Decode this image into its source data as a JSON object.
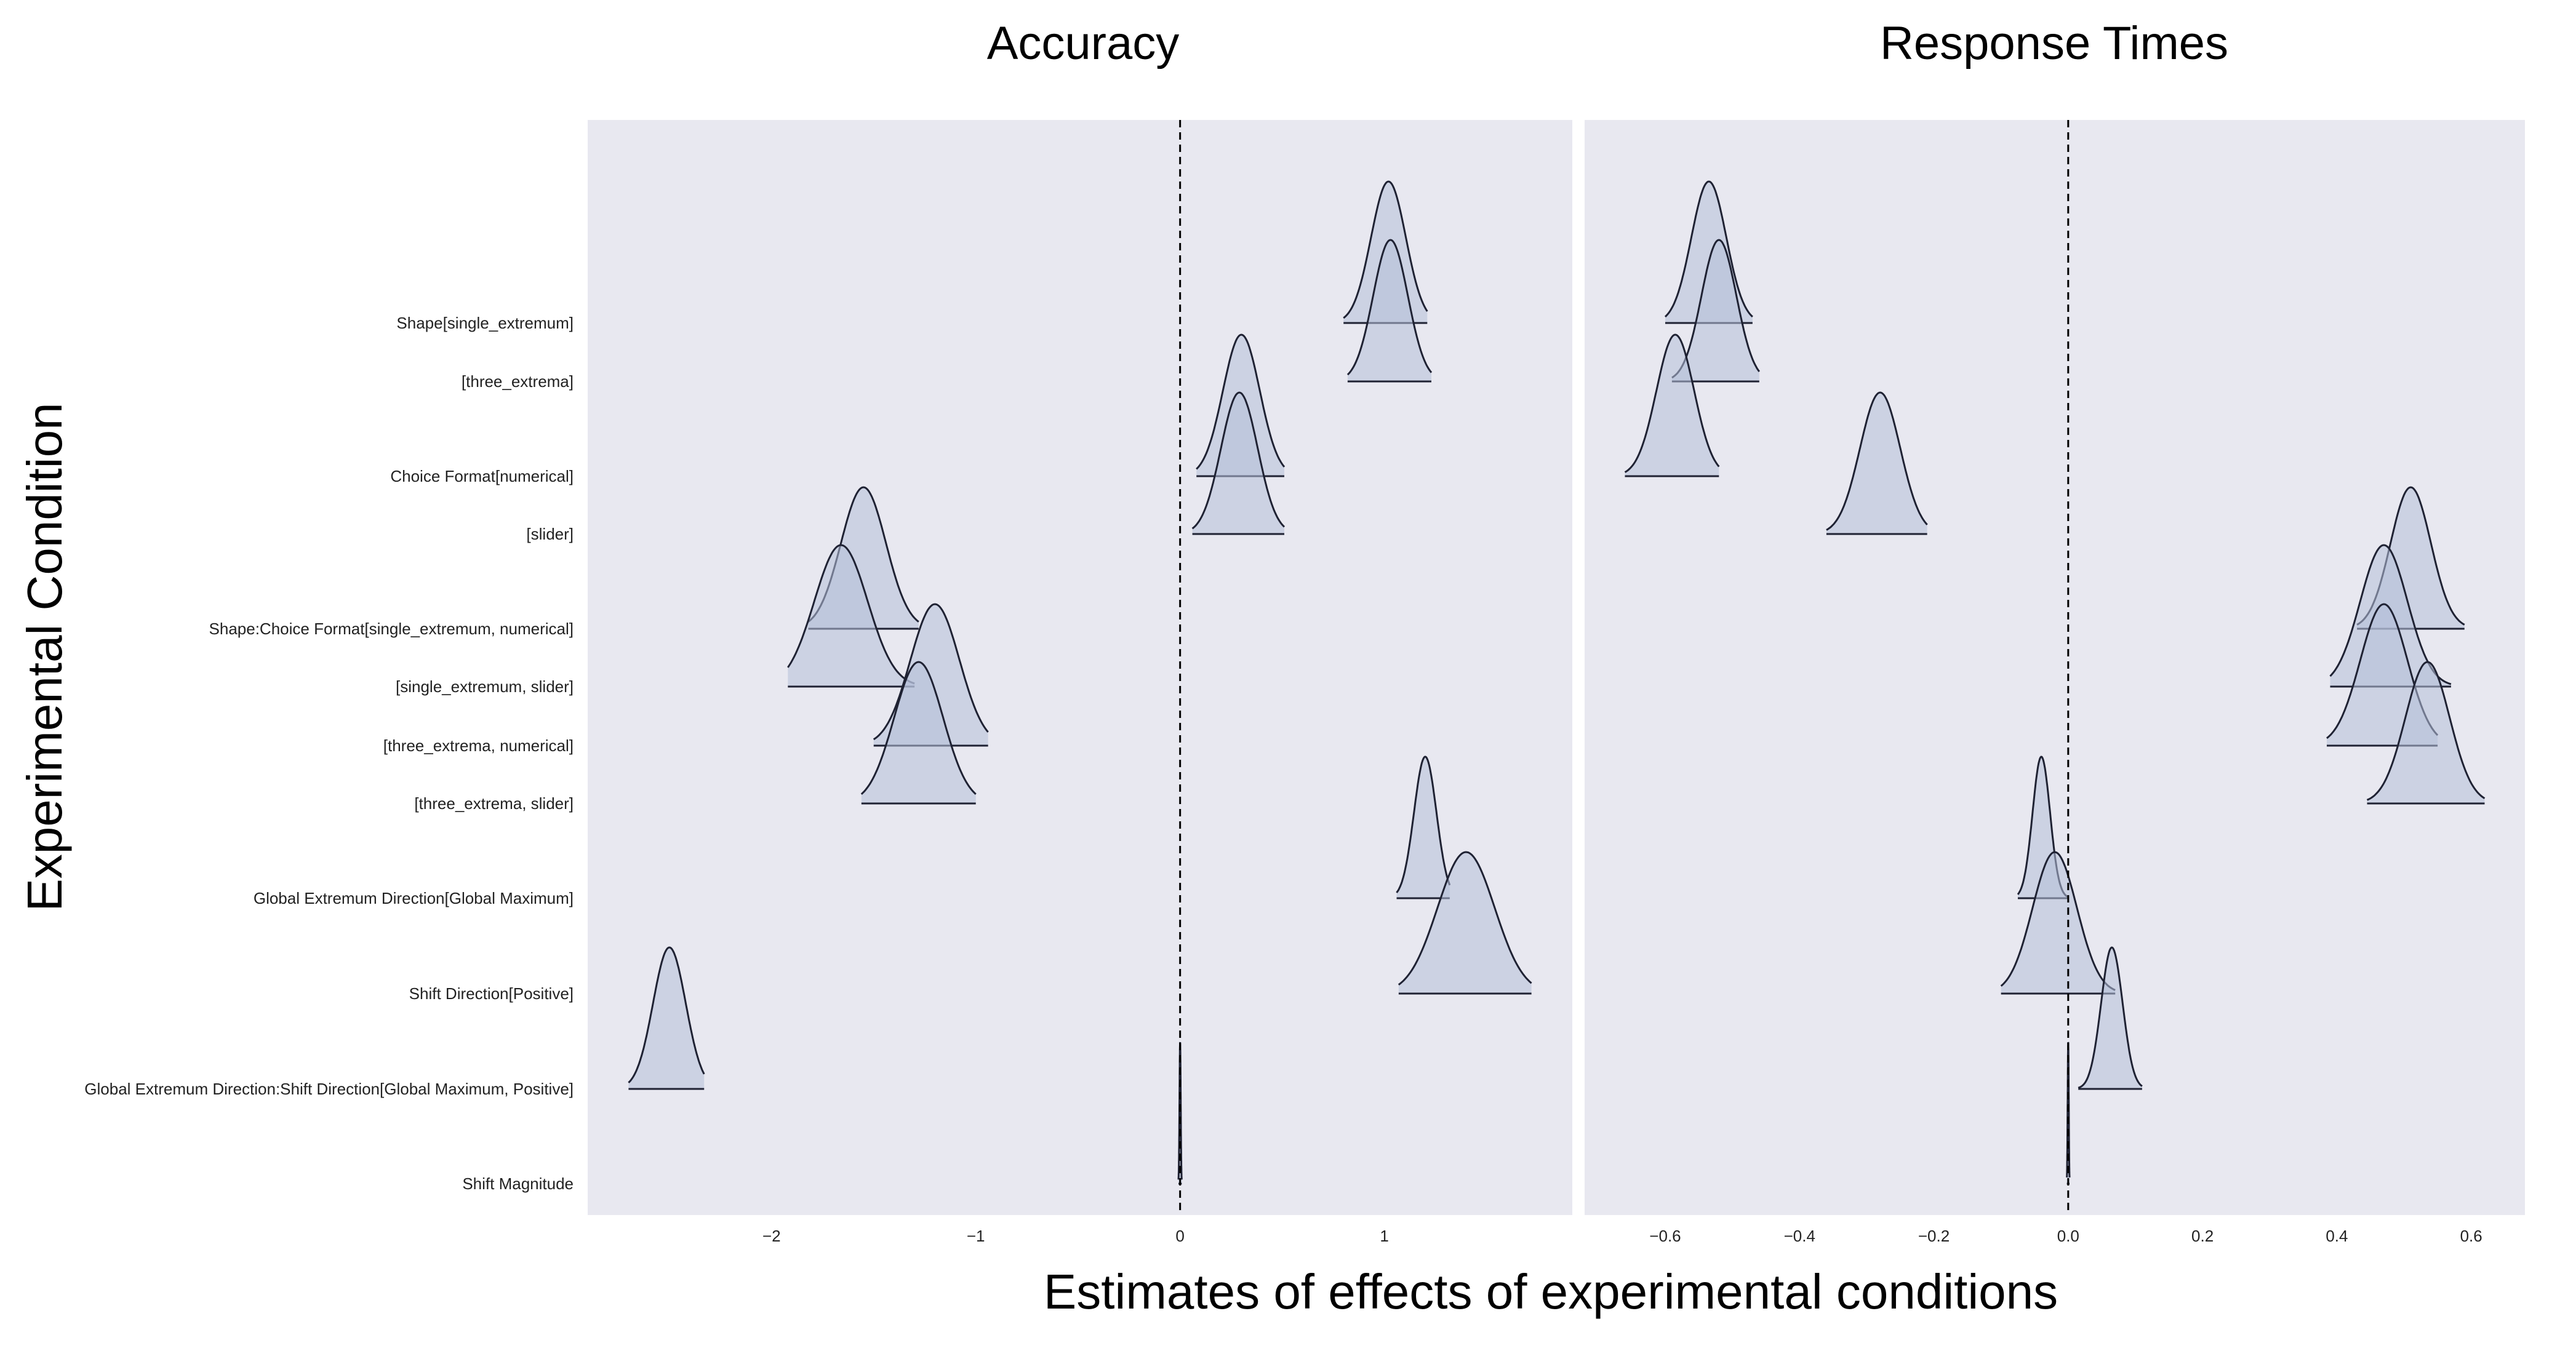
{
  "figure": {
    "ylabel": "Experimental Condition",
    "xlabel": "Estimates of effects of experimental conditions"
  },
  "colors": {
    "panel_background": "#e8e8f0",
    "density_fill": "#b4bfd9",
    "density_stroke": "#1f2233",
    "zero_line": "#000000"
  },
  "row_labels": [
    "Shape[single_extremum]",
    "[three_extrema]",
    "Choice Format[numerical]",
    "[slider]",
    "Shape:Choice Format[single_extremum, numerical]",
    "[single_extremum, slider]",
    "[three_extrema, numerical]",
    "[three_extrema, slider]",
    "Global Extremum Direction[Global Maximum]",
    "Shift Direction[Positive]",
    "Global Extremum Direction:Shift Direction[Global Maximum, Positive]",
    "Shift Magnitude"
  ],
  "chart_data": [
    {
      "type": "ridgeline-density",
      "title": "Accuracy",
      "xlim": [
        -2.9,
        1.92
      ],
      "xticks": [
        -2,
        -1,
        0,
        1
      ],
      "xtick_labels": [
        "−2",
        "−1",
        "0",
        "1"
      ],
      "reference_line_x": 0,
      "rows": [
        {
          "label": "Shape[single_extremum]",
          "mean": 1.02,
          "sd": 0.085,
          "range": [
            0.8,
            1.21
          ]
        },
        {
          "label": "[three_extrema]",
          "mean": 1.03,
          "sd": 0.085,
          "range": [
            0.82,
            1.23
          ]
        },
        {
          "label": "Choice Format[numerical]",
          "mean": 0.3,
          "sd": 0.09,
          "range": [
            0.08,
            0.51
          ]
        },
        {
          "label": "[slider]",
          "mean": 0.29,
          "sd": 0.09,
          "range": [
            0.06,
            0.51
          ]
        },
        {
          "label": "Shape:Choice Format[single_extremum, numerical]",
          "mean": -1.55,
          "sd": 0.11,
          "range": [
            -1.82,
            -1.28
          ]
        },
        {
          "label": "[single_extremum, slider]",
          "mean": -1.66,
          "sd": 0.13,
          "range": [
            -1.92,
            -1.3
          ]
        },
        {
          "label": "[three_extrema, numerical]",
          "mean": -1.2,
          "sd": 0.12,
          "range": [
            -1.5,
            -0.94
          ]
        },
        {
          "label": "[three_extrema, slider]",
          "mean": -1.28,
          "sd": 0.12,
          "range": [
            -1.56,
            -1.0
          ]
        },
        {
          "label": "Global Extremum Direction[Global Maximum]",
          "mean": 1.2,
          "sd": 0.055,
          "range": [
            1.06,
            1.32
          ]
        },
        {
          "label": "Shift Direction[Positive]",
          "mean": 1.4,
          "sd": 0.14,
          "range": [
            1.07,
            1.72
          ]
        },
        {
          "label": "Global Extremum Direction:Shift Direction[Global Maximum, Positive]",
          "mean": -2.5,
          "sd": 0.08,
          "range": [
            -2.7,
            -2.33
          ]
        },
        {
          "label": "Shift Magnitude",
          "mean": 0.0,
          "sd": 0.003,
          "range": [
            -0.008,
            0.008
          ]
        }
      ]
    },
    {
      "type": "ridgeline-density",
      "title": "Response Times",
      "xlim": [
        -0.72,
        0.68
      ],
      "xticks": [
        -0.6,
        -0.4,
        -0.2,
        0.0,
        0.2,
        0.4,
        0.6
      ],
      "xtick_labels": [
        "−0.6",
        "−0.4",
        "−0.2",
        "0.0",
        "0.2",
        "0.4",
        "0.6"
      ],
      "reference_line_x": 0,
      "rows": [
        {
          "label": "Shape[single_extremum]",
          "mean": -0.535,
          "sd": 0.026,
          "range": [
            -0.6,
            -0.47
          ]
        },
        {
          "label": "[three_extrema]",
          "mean": -0.52,
          "sd": 0.026,
          "range": [
            -0.59,
            -0.46
          ]
        },
        {
          "label": "Choice Format[numerical]",
          "mean": -0.585,
          "sd": 0.028,
          "range": [
            -0.66,
            -0.52
          ]
        },
        {
          "label": "[slider]",
          "mean": -0.28,
          "sd": 0.03,
          "range": [
            -0.36,
            -0.21
          ]
        },
        {
          "label": "Shape:Choice Format[single_extremum, numerical]",
          "mean": 0.51,
          "sd": 0.03,
          "range": [
            0.43,
            0.59
          ]
        },
        {
          "label": "[single_extremum, slider]",
          "mean": 0.47,
          "sd": 0.035,
          "range": [
            0.39,
            0.57
          ]
        },
        {
          "label": "[three_extrema, numerical]",
          "mean": 0.47,
          "sd": 0.035,
          "range": [
            0.385,
            0.55
          ]
        },
        {
          "label": "[three_extrema, slider]",
          "mean": 0.535,
          "sd": 0.033,
          "range": [
            0.445,
            0.62
          ]
        },
        {
          "label": "Global Extremum Direction[Global Maximum]",
          "mean": -0.04,
          "sd": 0.013,
          "range": [
            -0.075,
            0.0
          ]
        },
        {
          "label": "Shift Direction[Positive]",
          "mean": -0.02,
          "sd": 0.033,
          "range": [
            -0.1,
            0.07
          ]
        },
        {
          "label": "Global Extremum Direction:Shift Direction[Global Maximum, Positive]",
          "mean": 0.065,
          "sd": 0.016,
          "range": [
            0.015,
            0.11
          ]
        },
        {
          "label": "Shift Magnitude",
          "mean": 0.0,
          "sd": 0.0008,
          "range": [
            -0.002,
            0.002
          ]
        }
      ]
    }
  ]
}
